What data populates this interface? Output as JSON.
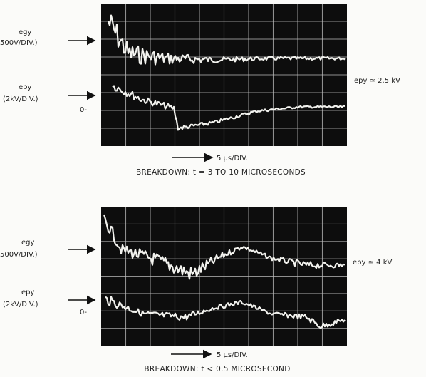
{
  "panels": [
    {
      "upper_trace": {
        "name": "egy",
        "scale": "500V/DIV.)"
      },
      "lower_trace": {
        "name": "epy",
        "scale": "(2kV/DIV.)"
      },
      "zero_marker": "0-",
      "condition": "epy ≃ 2.5 kV",
      "time_scale": "5 μs/DIV.",
      "caption": "BREAKDOWN:  t = 3 TO 10 MICROSECONDS"
    },
    {
      "upper_trace": {
        "name": "egy",
        "scale": "500V/DIV.)"
      },
      "lower_trace": {
        "name": "epy",
        "scale": "(2kV/DIV.)"
      },
      "zero_marker": "0-",
      "condition": "epy ≃ 4 kV",
      "time_scale": "5 μs/DIV.",
      "caption": "BREAKDOWN:  t < 0.5 MICROSECOND"
    }
  ]
}
